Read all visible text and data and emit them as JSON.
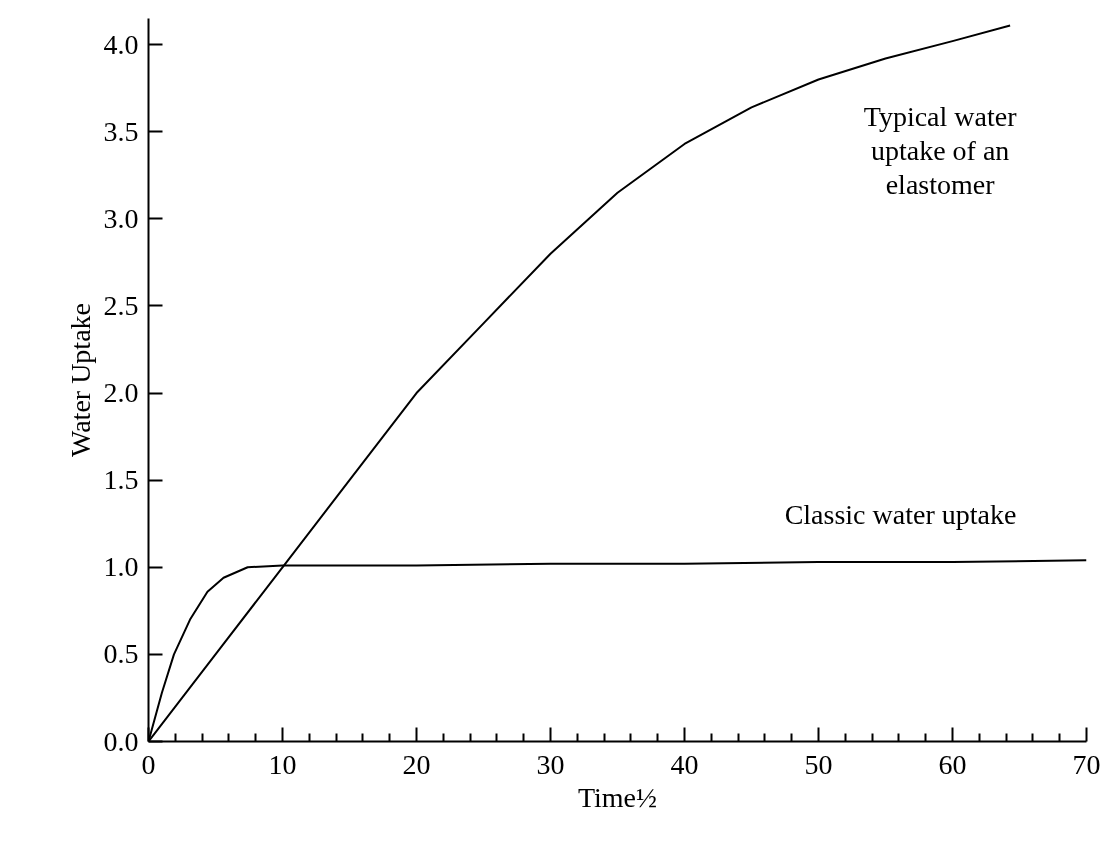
{
  "chart_data": {
    "type": "line",
    "xlabel": "Time½",
    "ylabel": "Water Uptake",
    "xlim": [
      0,
      70
    ],
    "ylim": [
      0,
      4.15
    ],
    "xticks": [
      0,
      {
        "value": 2,
        "label": null
      },
      {
        "value": 4,
        "label": null
      },
      {
        "value": 6,
        "label": null
      },
      {
        "value": 8,
        "label": null
      },
      10,
      {
        "value": 12,
        "label": null
      },
      {
        "value": 14,
        "label": null
      },
      {
        "value": 16,
        "label": null
      },
      {
        "value": 18,
        "label": null
      },
      20,
      {
        "value": 22,
        "label": null
      },
      {
        "value": 24,
        "label": null
      },
      {
        "value": 26,
        "label": null
      },
      {
        "value": 28,
        "label": null
      },
      30,
      {
        "value": 32,
        "label": null
      },
      {
        "value": 34,
        "label": null
      },
      {
        "value": 36,
        "label": null
      },
      {
        "value": 38,
        "label": null
      },
      40,
      {
        "value": 42,
        "label": null
      },
      {
        "value": 44,
        "label": null
      },
      {
        "value": 46,
        "label": null
      },
      {
        "value": 48,
        "label": null
      },
      50,
      {
        "value": 52,
        "label": null
      },
      {
        "value": 54,
        "label": null
      },
      {
        "value": 56,
        "label": null
      },
      {
        "value": 58,
        "label": null
      },
      60,
      {
        "value": 62,
        "label": null
      },
      {
        "value": 64,
        "label": null
      },
      {
        "value": 66,
        "label": null
      },
      {
        "value": 68,
        "label": null
      },
      70
    ],
    "yticks": [
      {
        "value": 0,
        "label": "0.0"
      },
      {
        "value": 0.5,
        "label": "0.5"
      },
      {
        "value": 1,
        "label": "1.0"
      },
      {
        "value": 1.5,
        "label": "1.5"
      },
      {
        "value": 2,
        "label": "2.0"
      },
      {
        "value": 2.5,
        "label": "2.5"
      },
      {
        "value": 3,
        "label": "3.0"
      },
      {
        "value": 3.5,
        "label": "3.5"
      },
      {
        "value": 4,
        "label": "4.0"
      }
    ],
    "grid": false,
    "marker": "none",
    "line_style": "solid",
    "series": [
      {
        "name": "Classic water uptake",
        "color": "#000000",
        "x": [
          0,
          1,
          1.9,
          3.1,
          4.4,
          5.6,
          7.4,
          10,
          20,
          30,
          40,
          50,
          60,
          70
        ],
        "values": [
          0,
          0.28,
          0.5,
          0.7,
          0.86,
          0.94,
          1.0,
          1.01,
          1.01,
          1.02,
          1.02,
          1.03,
          1.03,
          1.04
        ]
      },
      {
        "name": "Typical water uptake of an elastomer",
        "color": "#000000",
        "x": [
          0,
          5,
          10,
          15,
          20,
          25,
          30,
          35,
          40,
          45,
          50,
          55,
          60,
          64.3
        ],
        "values": [
          0,
          0.5,
          1.0,
          1.5,
          2.0,
          2.4,
          2.8,
          3.15,
          3.43,
          3.64,
          3.8,
          3.92,
          4.02,
          4.11
        ]
      }
    ]
  }
}
